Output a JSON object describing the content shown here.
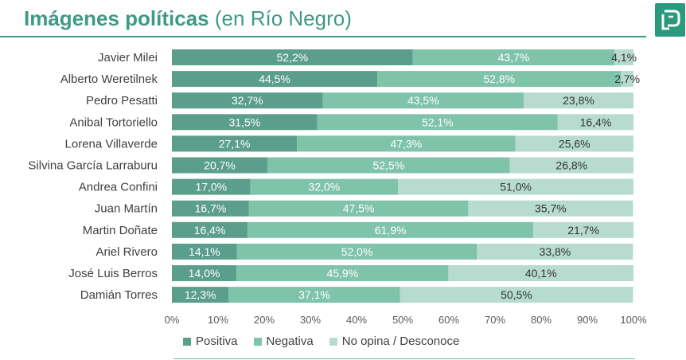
{
  "header": {
    "title_bold": "Imágenes políticas",
    "title_light": "(en Río Negro)",
    "logo_icon": "brand-logo-icon"
  },
  "colors": {
    "positiva": "#5b9e8b",
    "negativa": "#7fc3ab",
    "no_opina": "#b7dccf",
    "title": "#3e9a86"
  },
  "chart_data": {
    "type": "bar",
    "orientation": "horizontal",
    "stacked": true,
    "categories": [
      "Javier Milei",
      "Alberto Weretilnek",
      "Pedro Pesatti",
      "Anibal Tortoriello",
      "Lorena Villaverde",
      "Silvina García Larraburu",
      "Andrea Confini",
      "Juan Martín",
      "Martin Doñate",
      "Ariel Rivero",
      "José Luis Berros",
      "Damián Torres"
    ],
    "series": [
      {
        "name": "Positiva",
        "values": [
          52.2,
          44.5,
          32.7,
          31.5,
          27.1,
          20.7,
          17.0,
          16.7,
          16.4,
          14.1,
          14.0,
          12.3
        ]
      },
      {
        "name": "Negativa",
        "values": [
          43.7,
          52.8,
          43.5,
          52.1,
          47.3,
          52.5,
          32.0,
          47.5,
          61.9,
          52.0,
          45.9,
          37.1
        ]
      },
      {
        "name": "No opina / Desconoce",
        "values": [
          4.1,
          2.7,
          23.8,
          16.4,
          25.6,
          26.8,
          51.0,
          35.7,
          21.7,
          33.8,
          40.1,
          50.5
        ]
      }
    ],
    "value_labels": [
      [
        "52,2%",
        "44,5%",
        "32,7%",
        "31,5%",
        "27,1%",
        "20,7%",
        "17,0%",
        "16,7%",
        "16,4%",
        "14,1%",
        "14,0%",
        "12,3%"
      ],
      [
        "43,7%",
        "52,8%",
        "43,5%",
        "52,1%",
        "47,3%",
        "52,5%",
        "32,0%",
        "47,5%",
        "61,9%",
        "52,0%",
        "45,9%",
        "37,1%"
      ],
      [
        "4,1%",
        "2,7%",
        "23,8%",
        "16,4%",
        "25,6%",
        "26,8%",
        "51,0%",
        "35,7%",
        "21,7%",
        "33,8%",
        "40,1%",
        "50,5%"
      ]
    ],
    "x_ticks": [
      "0%",
      "10%",
      "20%",
      "30%",
      "40%",
      "50%",
      "60%",
      "70%",
      "80%",
      "90%",
      "100%"
    ],
    "xlim": [
      0,
      100
    ],
    "grid": false,
    "legend_position": "bottom"
  }
}
